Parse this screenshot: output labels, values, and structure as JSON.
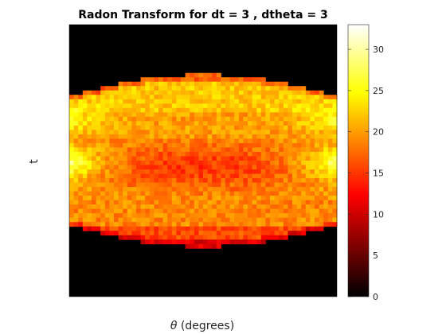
{
  "chart_data": {
    "type": "heatmap",
    "title": "Radon Transform for dt = 3 , dtheta = 3",
    "xlabel_symbol": "θ",
    "xlabel_text": " (degrees)",
    "ylabel": "t",
    "colormap": "hot",
    "colorbar": {
      "range": [
        0,
        33
      ],
      "ticks": [
        0,
        5,
        10,
        15,
        20,
        25,
        30
      ]
    },
    "grid": false,
    "colors": {
      "background": "#000000",
      "low": "#000000",
      "high": "#ffffff"
    }
  }
}
